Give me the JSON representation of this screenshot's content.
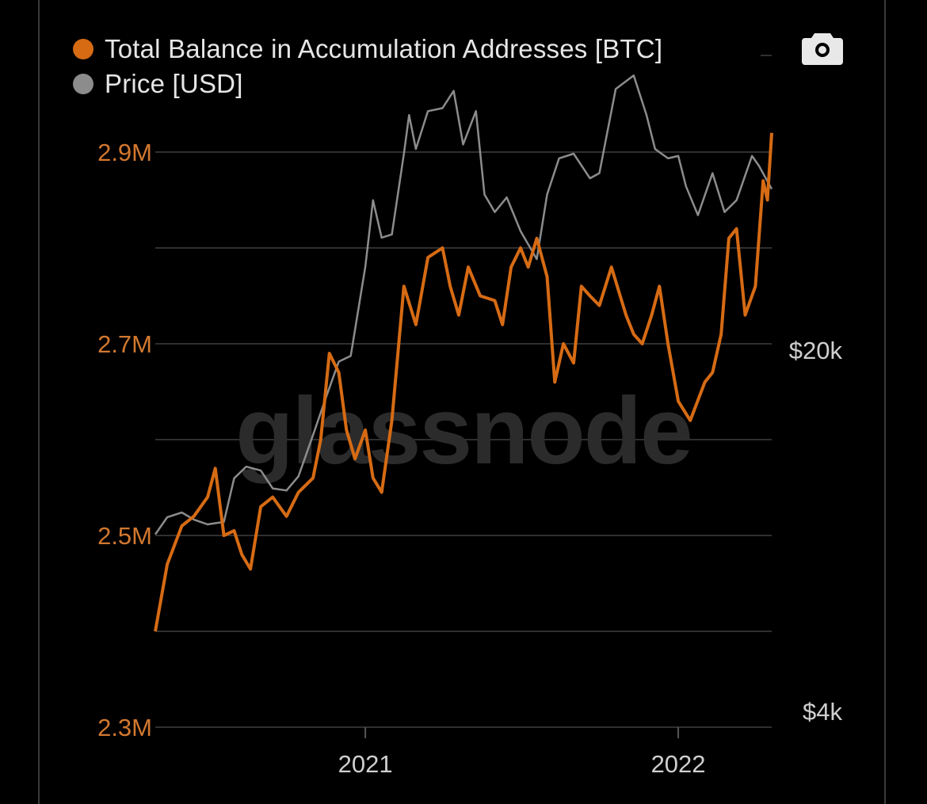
{
  "chart_data": {
    "type": "line",
    "title": "",
    "watermark": "glassnode",
    "legend_placement": "top-left",
    "grid": true,
    "x_range": [
      "2020-05-01",
      "2022-04-20"
    ],
    "x_ticks": [
      {
        "label": "2021",
        "date": "2021-01-01"
      },
      {
        "label": "2022",
        "date": "2022-01-01"
      }
    ],
    "y_left": {
      "label": "",
      "range": [
        2300000,
        2950000
      ],
      "ticks": [
        {
          "label": "2.3M",
          "value": 2300000
        },
        {
          "label": "2.5M",
          "value": 2500000
        },
        {
          "label": "2.7M",
          "value": 2700000
        },
        {
          "label": "2.9M",
          "value": 2900000
        }
      ]
    },
    "y_right": {
      "label": "",
      "scale": "log",
      "ticks": [
        {
          "label": "$4k",
          "value": 4000
        },
        {
          "label": "$20k",
          "value": 20000
        }
      ]
    },
    "series": [
      {
        "name": "Total Balance in Accumulation Addresses [BTC]",
        "color": "#d66b14",
        "axis": "left",
        "points": [
          [
            "2020-05-01",
            2400000
          ],
          [
            "2020-05-15",
            2470000
          ],
          [
            "2020-06-01",
            2510000
          ],
          [
            "2020-06-15",
            2520000
          ],
          [
            "2020-07-01",
            2540000
          ],
          [
            "2020-07-10",
            2570000
          ],
          [
            "2020-07-20",
            2500000
          ],
          [
            "2020-08-01",
            2505000
          ],
          [
            "2020-08-10",
            2480000
          ],
          [
            "2020-08-20",
            2465000
          ],
          [
            "2020-09-01",
            2530000
          ],
          [
            "2020-09-15",
            2540000
          ],
          [
            "2020-10-01",
            2520000
          ],
          [
            "2020-10-15",
            2545000
          ],
          [
            "2020-11-01",
            2560000
          ],
          [
            "2020-11-10",
            2600000
          ],
          [
            "2020-11-20",
            2690000
          ],
          [
            "2020-12-01",
            2670000
          ],
          [
            "2020-12-10",
            2610000
          ],
          [
            "2020-12-20",
            2580000
          ],
          [
            "2021-01-01",
            2610000
          ],
          [
            "2021-01-10",
            2560000
          ],
          [
            "2021-01-20",
            2545000
          ],
          [
            "2021-02-01",
            2620000
          ],
          [
            "2021-02-15",
            2760000
          ],
          [
            "2021-03-01",
            2720000
          ],
          [
            "2021-03-15",
            2790000
          ],
          [
            "2021-04-01",
            2800000
          ],
          [
            "2021-04-10",
            2760000
          ],
          [
            "2021-04-20",
            2730000
          ],
          [
            "2021-05-01",
            2780000
          ],
          [
            "2021-05-15",
            2750000
          ],
          [
            "2021-06-01",
            2745000
          ],
          [
            "2021-06-10",
            2720000
          ],
          [
            "2021-06-20",
            2780000
          ],
          [
            "2021-07-01",
            2800000
          ],
          [
            "2021-07-10",
            2780000
          ],
          [
            "2021-07-20",
            2810000
          ],
          [
            "2021-08-01",
            2770000
          ],
          [
            "2021-08-10",
            2660000
          ],
          [
            "2021-08-20",
            2700000
          ],
          [
            "2021-09-01",
            2680000
          ],
          [
            "2021-09-10",
            2760000
          ],
          [
            "2021-09-20",
            2750000
          ],
          [
            "2021-10-01",
            2740000
          ],
          [
            "2021-10-15",
            2780000
          ],
          [
            "2021-11-01",
            2730000
          ],
          [
            "2021-11-10",
            2710000
          ],
          [
            "2021-11-20",
            2700000
          ],
          [
            "2021-12-01",
            2730000
          ],
          [
            "2021-12-10",
            2760000
          ],
          [
            "2021-12-20",
            2700000
          ],
          [
            "2022-01-01",
            2640000
          ],
          [
            "2022-01-15",
            2620000
          ],
          [
            "2022-02-01",
            2660000
          ],
          [
            "2022-02-10",
            2670000
          ],
          [
            "2022-02-20",
            2710000
          ],
          [
            "2022-03-01",
            2810000
          ],
          [
            "2022-03-10",
            2820000
          ],
          [
            "2022-03-20",
            2730000
          ],
          [
            "2022-04-01",
            2760000
          ],
          [
            "2022-04-10",
            2870000
          ],
          [
            "2022-04-15",
            2850000
          ],
          [
            "2022-04-20",
            2920000
          ]
        ]
      },
      {
        "name": "Price [USD]",
        "color": "#8c8c8c",
        "axis": "right",
        "points": [
          [
            "2020-05-01",
            8800
          ],
          [
            "2020-05-15",
            9500
          ],
          [
            "2020-06-01",
            9700
          ],
          [
            "2020-06-15",
            9400
          ],
          [
            "2020-07-01",
            9200
          ],
          [
            "2020-07-20",
            9300
          ],
          [
            "2020-08-01",
            11300
          ],
          [
            "2020-08-15",
            11900
          ],
          [
            "2020-09-01",
            11700
          ],
          [
            "2020-09-15",
            10800
          ],
          [
            "2020-10-01",
            10700
          ],
          [
            "2020-10-15",
            11400
          ],
          [
            "2020-11-01",
            13700
          ],
          [
            "2020-11-15",
            16000
          ],
          [
            "2020-12-01",
            19000
          ],
          [
            "2020-12-15",
            19500
          ],
          [
            "2021-01-01",
            29000
          ],
          [
            "2021-01-10",
            39000
          ],
          [
            "2021-01-20",
            33000
          ],
          [
            "2021-02-01",
            33500
          ],
          [
            "2021-02-15",
            48000
          ],
          [
            "2021-02-21",
            57000
          ],
          [
            "2021-03-01",
            49000
          ],
          [
            "2021-03-15",
            58000
          ],
          [
            "2021-04-01",
            58800
          ],
          [
            "2021-04-14",
            63500
          ],
          [
            "2021-04-25",
            50000
          ],
          [
            "2021-05-10",
            58000
          ],
          [
            "2021-05-20",
            40000
          ],
          [
            "2021-06-01",
            37000
          ],
          [
            "2021-06-15",
            39500
          ],
          [
            "2021-07-01",
            34000
          ],
          [
            "2021-07-20",
            30000
          ],
          [
            "2021-08-01",
            40000
          ],
          [
            "2021-08-15",
            47000
          ],
          [
            "2021-09-01",
            48000
          ],
          [
            "2021-09-20",
            43000
          ],
          [
            "2021-10-01",
            44000
          ],
          [
            "2021-10-20",
            64000
          ],
          [
            "2021-11-10",
            68000
          ],
          [
            "2021-11-25",
            57000
          ],
          [
            "2021-12-05",
            49000
          ],
          [
            "2021-12-20",
            47000
          ],
          [
            "2022-01-01",
            47500
          ],
          [
            "2022-01-10",
            41500
          ],
          [
            "2022-01-24",
            36500
          ],
          [
            "2022-02-10",
            44000
          ],
          [
            "2022-02-24",
            37000
          ],
          [
            "2022-03-10",
            39000
          ],
          [
            "2022-03-28",
            47500
          ],
          [
            "2022-04-05",
            45500
          ],
          [
            "2022-04-20",
            41000
          ]
        ]
      }
    ]
  },
  "legend": [
    {
      "label": "Total Balance in Accumulation Addresses [BTC]",
      "color": "#d66b14"
    },
    {
      "label": "Price [USD]",
      "color": "#8c8c8c"
    }
  ],
  "toolbar": {
    "camera_icon": "camera-icon"
  }
}
